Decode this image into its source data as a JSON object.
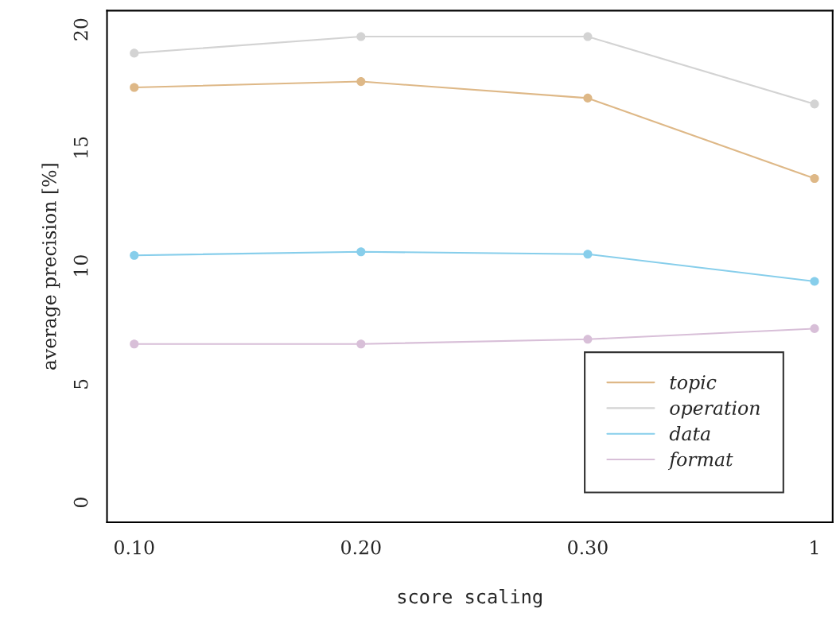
{
  "chart_data": {
    "type": "line",
    "xlabel": "score scaling",
    "ylabel": "average precision [%]",
    "categories": [
      "0.10",
      "0.20",
      "0.30",
      "1"
    ],
    "series": [
      {
        "name": "topic",
        "color": "#deb887",
        "values": [
          17.55,
          17.8,
          17.1,
          13.7
        ]
      },
      {
        "name": "operation",
        "color": "#d3d3d3",
        "values": [
          19.0,
          19.7,
          19.7,
          16.85
        ]
      },
      {
        "name": "data",
        "color": "#87ceeb",
        "values": [
          10.45,
          10.6,
          10.5,
          9.35
        ]
      },
      {
        "name": "format",
        "color": "#d8bfd8",
        "values": [
          6.7,
          6.7,
          6.9,
          7.35
        ]
      }
    ],
    "ylim": [
      -0.84,
      20.8
    ],
    "yticks": [
      0,
      5,
      10,
      15,
      20
    ],
    "marker": "circle",
    "line_style": "solid",
    "grid": false,
    "legend": "bottom right"
  }
}
